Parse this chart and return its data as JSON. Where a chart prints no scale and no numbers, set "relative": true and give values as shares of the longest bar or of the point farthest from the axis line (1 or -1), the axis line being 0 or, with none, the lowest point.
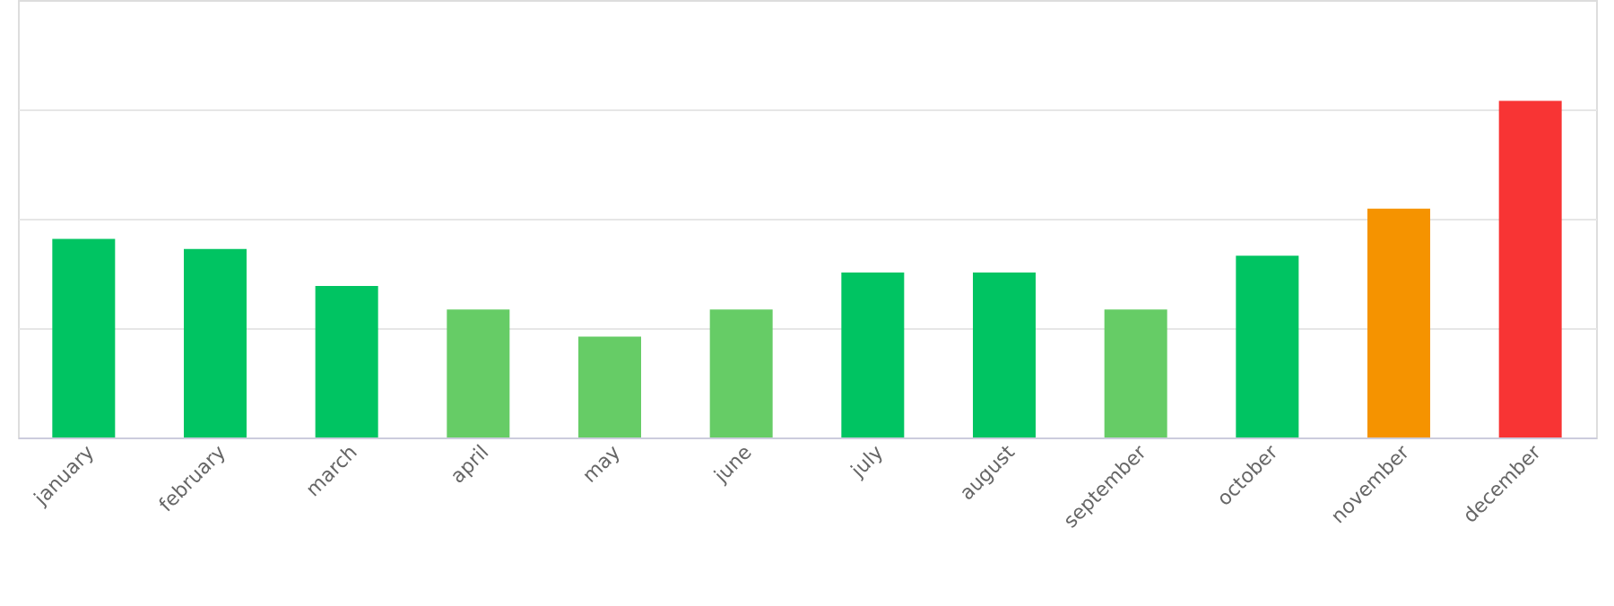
{
  "chart_data": {
    "type": "bar",
    "relative": true,
    "grid": "y",
    "categories": [
      "january",
      "february",
      "march",
      "april",
      "may",
      "june",
      "july",
      "august",
      "september",
      "october",
      "november",
      "december"
    ],
    "values": [
      0.59,
      0.56,
      0.45,
      0.38,
      0.3,
      0.38,
      0.49,
      0.49,
      0.38,
      0.54,
      0.68,
      1
    ],
    "colors": [
      "#00c462",
      "#00c462",
      "#00c462",
      "#66cc66",
      "#66cc66",
      "#66cc66",
      "#00c462",
      "#00c462",
      "#66cc66",
      "#00c462",
      "#f59300",
      "#f83434"
    ]
  }
}
